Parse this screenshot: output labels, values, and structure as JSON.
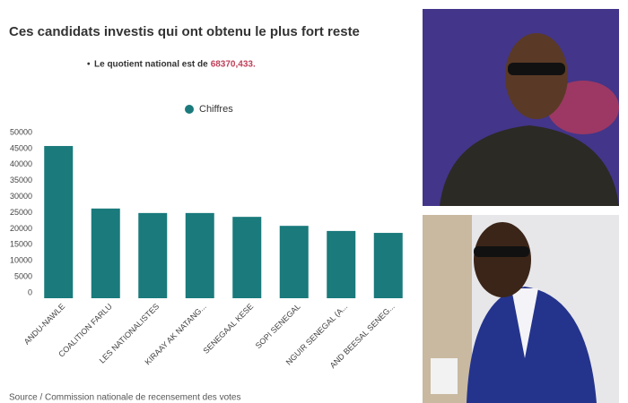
{
  "chart_data": {
    "type": "bar",
    "title": "Ces candidats investis qui ont obtenu le plus fort reste",
    "subtitle": "Le quotient national est de",
    "subtitle_value": "68370,433.",
    "legend": "Chiffres",
    "source": "Source / Commission nationale de recensement des votes",
    "categories": [
      "ANDU-NAWLE",
      "COALITION FARLU",
      "LES NATIONALISTES",
      "KIRAAY AK NATANG...",
      "SENEGAAL KESE",
      "SOPI SENEGAL",
      "NGUIR SENEGAL (A...",
      "AND BEESAL SENEG..."
    ],
    "values": [
      45800,
      26300,
      24900,
      24900,
      23700,
      20900,
      19300,
      18700
    ],
    "color": "#1a7a7c",
    "ylim": [
      0,
      50000
    ],
    "yticks": [
      0,
      5000,
      10000,
      15000,
      20000,
      25000,
      30000,
      35000,
      40000,
      45000,
      50000
    ],
    "grid": false
  }
}
